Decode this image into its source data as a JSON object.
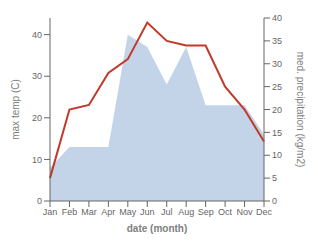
{
  "chart_data": {
    "type": "line",
    "xlabel": "date (month)",
    "ylabel": "max temp (C)",
    "y2label": "med. precipitation (kg/m2)",
    "categories": [
      "Jan",
      "Feb",
      "Mar",
      "Apr",
      "May",
      "Jun",
      "Jul",
      "Aug",
      "Sep",
      "Oct",
      "Nov",
      "Dec"
    ],
    "series": [
      {
        "type": "area",
        "color": "#b8cce4",
        "values": [
          8,
          13,
          13,
          13,
          40,
          37,
          28,
          37,
          23,
          23,
          23,
          16
        ]
      },
      {
        "type": "line",
        "color": "#c0392b",
        "axis": "y2",
        "values": [
          5,
          20,
          21,
          28,
          31,
          39,
          35,
          34,
          34,
          25,
          20,
          13
        ]
      }
    ],
    "ylim": [
      0,
      44
    ],
    "yticks": [
      0,
      10,
      20,
      30,
      40
    ],
    "y2lim": [
      0,
      40
    ],
    "y2ticks": [
      0,
      5,
      10,
      15,
      20,
      25,
      30,
      35,
      40
    ]
  }
}
